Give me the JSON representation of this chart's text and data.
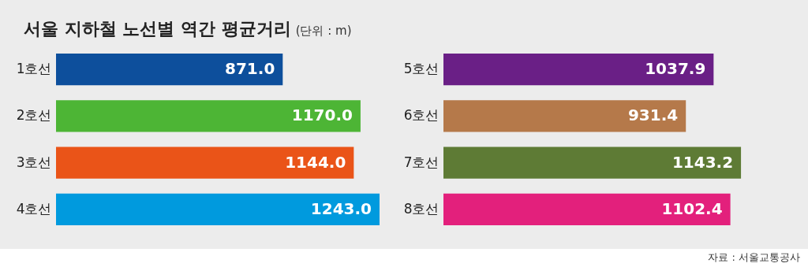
{
  "chart_data": [
    {
      "type": "bar",
      "orientation": "horizontal",
      "title": "서울 지하철 노선별 역간 평균거리",
      "subtitle": "(단위 : m)",
      "categories": [
        "1호선",
        "2호선",
        "3호선",
        "4호선"
      ],
      "values": [
        871.0,
        1170.0,
        1144.0,
        1243.0
      ],
      "value_labels": [
        "871.0",
        "1170.0",
        "1144.0",
        "1243.0"
      ],
      "colors": [
        "#0d4f9c",
        "#4db535",
        "#ea5418",
        "#009ade"
      ]
    },
    {
      "type": "bar",
      "orientation": "horizontal",
      "categories": [
        "5호선",
        "6호선",
        "7호선",
        "8호선"
      ],
      "values": [
        1037.9,
        931.4,
        1143.2,
        1102.4
      ],
      "value_labels": [
        "1037.9",
        "931.4",
        "1143.2",
        "1102.4"
      ],
      "colors": [
        "#6a1f86",
        "#b5794a",
        "#5e7b35",
        "#e3207c"
      ],
      "annotations": [
        "자료 : 서울교통공사"
      ]
    }
  ]
}
